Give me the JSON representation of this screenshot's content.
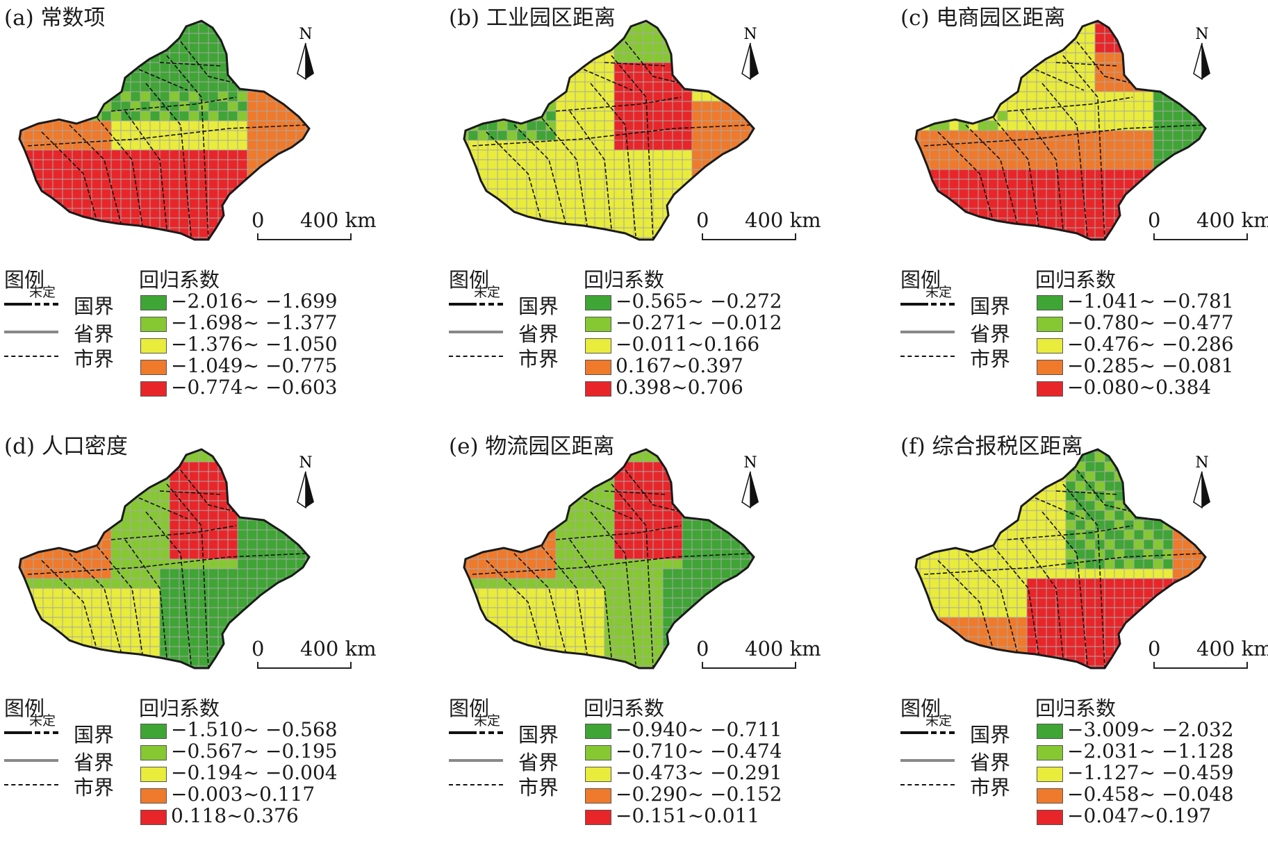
{
  "colors": {
    "class1": "#3fa535",
    "class2": "#86c832",
    "class3": "#e9ec3a",
    "class4": "#ef7a2b",
    "class5": "#e8262a",
    "grid": "#a8a8a8",
    "boundary": "#1a1a1a"
  },
  "legend": {
    "title": "图例",
    "coef_title": "回归系数",
    "national": "国界",
    "undetermined": "未定",
    "province": "省界",
    "city": "市界"
  },
  "north_label": "N",
  "scale": {
    "zero": "0",
    "km": "400 km"
  },
  "panels": [
    {
      "title": "(a) 常数项",
      "ranges": [
        "−2.016~ −1.699",
        "−1.698~ −1.377",
        "−1.376~ −1.050",
        "−1.049~ −0.775",
        "−0.774~ −0.603"
      ],
      "pattern": "a"
    },
    {
      "title": "(b) 工业园区距离",
      "ranges": [
        "−0.565~ −0.272",
        "−0.271~ −0.012",
        "−0.011~0.166",
        "0.167~0.397",
        "0.398~0.706"
      ],
      "pattern": "b"
    },
    {
      "title": "(c) 电商园区距离",
      "ranges": [
        "−1.041~ −0.781",
        "−0.780~ −0.477",
        "−0.476~ −0.286",
        "−0.285~ −0.081",
        "−0.080~0.384"
      ],
      "pattern": "c"
    },
    {
      "title": "(d) 人口密度",
      "ranges": [
        "−1.510~ −0.568",
        "−0.567~ −0.195",
        "−0.194~ −0.004",
        "−0.003~0.117",
        "0.118~0.376"
      ],
      "pattern": "d"
    },
    {
      "title": "(e) 物流园区距离",
      "ranges": [
        "−0.940~ −0.711",
        "−0.710~ −0.474",
        "−0.473~ −0.291",
        "−0.290~ −0.152",
        "−0.151~0.011"
      ],
      "pattern": "e"
    },
    {
      "title": "(f) 综合报税区距离",
      "ranges": [
        "−3.009~ −2.032",
        "−2.031~ −1.128",
        "−1.127~ −0.459",
        "−0.458~ −0.048",
        "−0.047~0.197"
      ],
      "pattern": "f"
    }
  ]
}
